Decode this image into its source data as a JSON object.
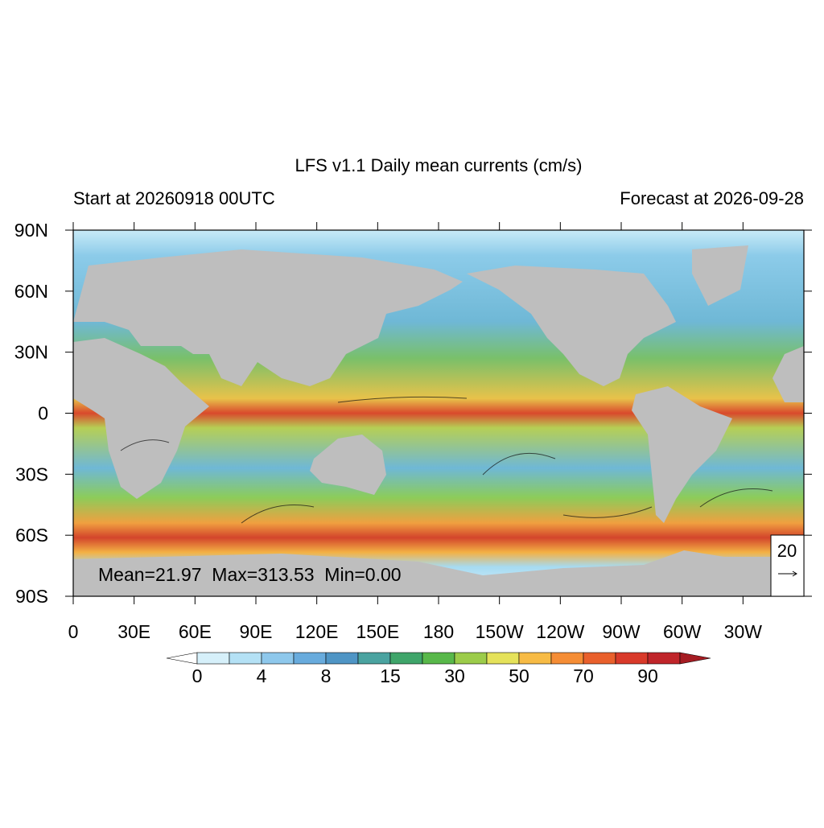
{
  "map": {
    "title": "LFS v1.1 Daily mean currents (cm/s)",
    "subtitle_left": "Start at 20260918 00UTC",
    "subtitle_right": "Forecast at 2026-09-28",
    "stats": "Mean=21.97  Max=313.53  Min=0.00",
    "reference_vector": "20",
    "lon_ticks": [
      {
        "value": 0,
        "label": "0"
      },
      {
        "value": 30,
        "label": "30E"
      },
      {
        "value": 60,
        "label": "60E"
      },
      {
        "value": 90,
        "label": "90E"
      },
      {
        "value": 120,
        "label": "120E"
      },
      {
        "value": 150,
        "label": "150E"
      },
      {
        "value": 180,
        "label": "180"
      },
      {
        "value": 210,
        "label": "150W"
      },
      {
        "value": 240,
        "label": "120W"
      },
      {
        "value": 270,
        "label": "90W"
      },
      {
        "value": 300,
        "label": "60W"
      },
      {
        "value": 330,
        "label": "30W"
      }
    ],
    "lat_ticks": [
      {
        "value": 90,
        "label": "90N"
      },
      {
        "value": 60,
        "label": "60N"
      },
      {
        "value": 30,
        "label": "30N"
      },
      {
        "value": 0,
        "label": "0"
      },
      {
        "value": -30,
        "label": "30S"
      },
      {
        "value": -60,
        "label": "60S"
      },
      {
        "value": -90,
        "label": "90S"
      }
    ],
    "colorbar": {
      "labels": [
        0,
        4,
        8,
        15,
        30,
        50,
        70,
        90
      ],
      "colors": [
        "#d6f0fa",
        "#b4e1f5",
        "#8ec8ec",
        "#68abdd",
        "#4f95c5",
        "#4aa3a0",
        "#3fa56a",
        "#58b84a",
        "#9ccc4a",
        "#e5e25a",
        "#f7bb45",
        "#f58d35",
        "#e9602c",
        "#d93a2a",
        "#c0252a"
      ],
      "under_color": "#ffffff",
      "over_color": "#a51c22"
    }
  }
}
